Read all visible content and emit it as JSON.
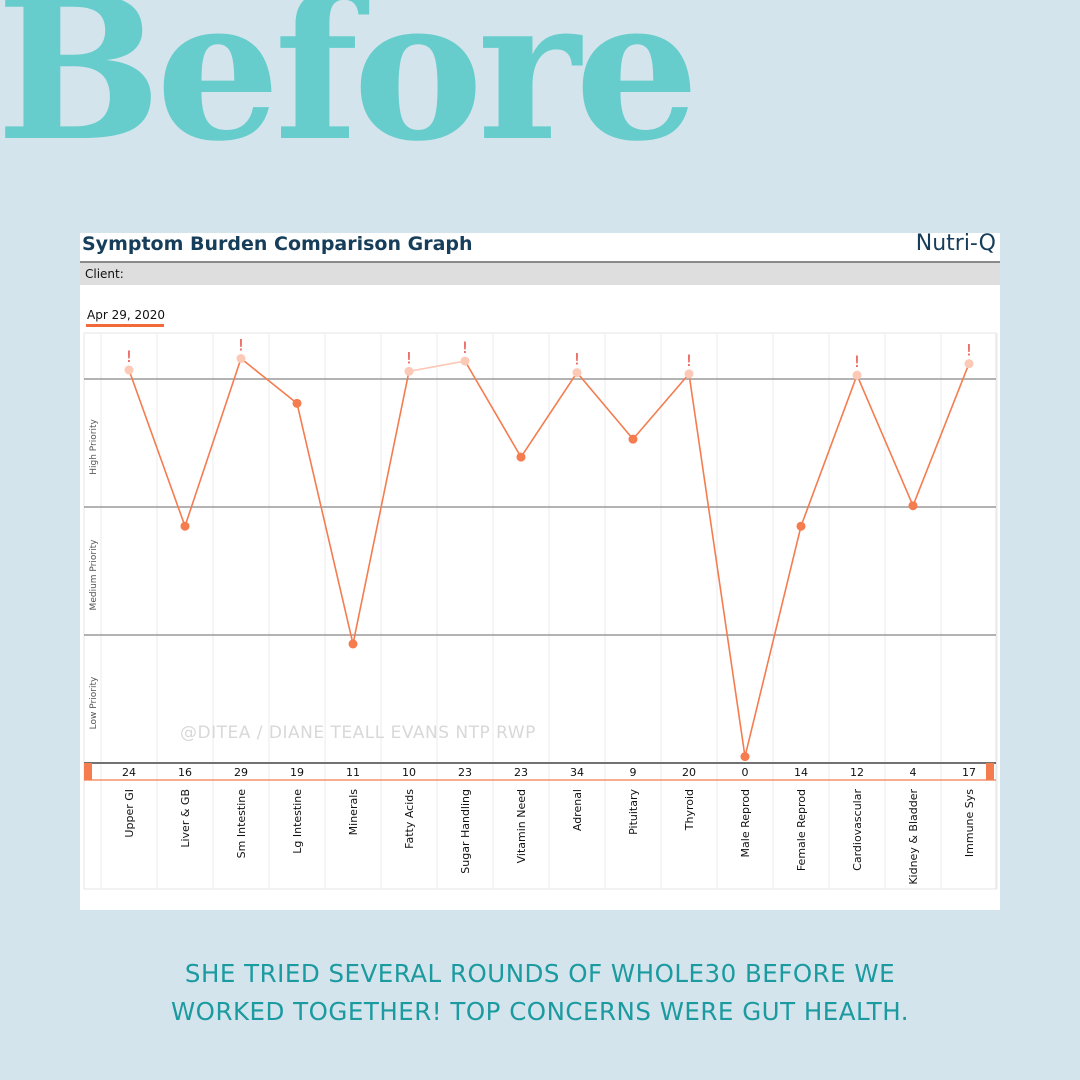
{
  "headline": "Before",
  "card": {
    "title": "Symptom Burden Comparison Graph",
    "brand": "Nutri-Q",
    "client_label": "Client:",
    "date": "Apr 29, 2020"
  },
  "watermark": "@DITEA / DIANE TEALL EVANS NTP RWP",
  "caption": {
    "line1": "SHE TRIED SEVERAL ROUNDS OF WHOLE30 BEFORE WE",
    "line2": "WORKED TOGETHER! TOP CONCERNS WERE GUT HEALTH."
  },
  "colors": {
    "line": "#f47c4f",
    "point": "#f47c4f",
    "flag_point": "#fbc9b5",
    "flag": "#e8564f",
    "headline": "#66cdcc",
    "caption": "#1b9aa0",
    "title": "#163e5a"
  },
  "chart_data": {
    "type": "line",
    "title": "Symptom Burden Comparison Graph",
    "bands": [
      "Low Priority",
      "Medium Priority",
      "High Priority"
    ],
    "categories": [
      "Upper GI",
      "Liver & GB",
      "Sm Intestine",
      "Lg Intestine",
      "Minerals",
      "Fatty Acids",
      "Sugar Handling",
      "Vitamin Need",
      "Adrenal",
      "Pituitary",
      "Thyroid",
      "Male Reprod",
      "Female Reprod",
      "Cardiovascular",
      "Kidney & Bladder",
      "Immune Sys"
    ],
    "series": [
      {
        "name": "Apr 29, 2020",
        "scores": [
          24,
          16,
          29,
          19,
          11,
          10,
          23,
          23,
          34,
          9,
          20,
          0,
          14,
          12,
          4,
          17
        ],
        "priority_level": [
          3.07,
          1.85,
          3.16,
          2.81,
          0.93,
          3.06,
          3.14,
          2.39,
          3.05,
          2.53,
          3.04,
          0.05,
          1.85,
          3.03,
          2.01,
          3.12
        ],
        "flagged": [
          true,
          false,
          true,
          false,
          false,
          true,
          true,
          false,
          true,
          false,
          true,
          false,
          false,
          true,
          false,
          true
        ]
      }
    ],
    "ylim": [
      0,
      3
    ],
    "grid": true,
    "legend": "top-left"
  }
}
